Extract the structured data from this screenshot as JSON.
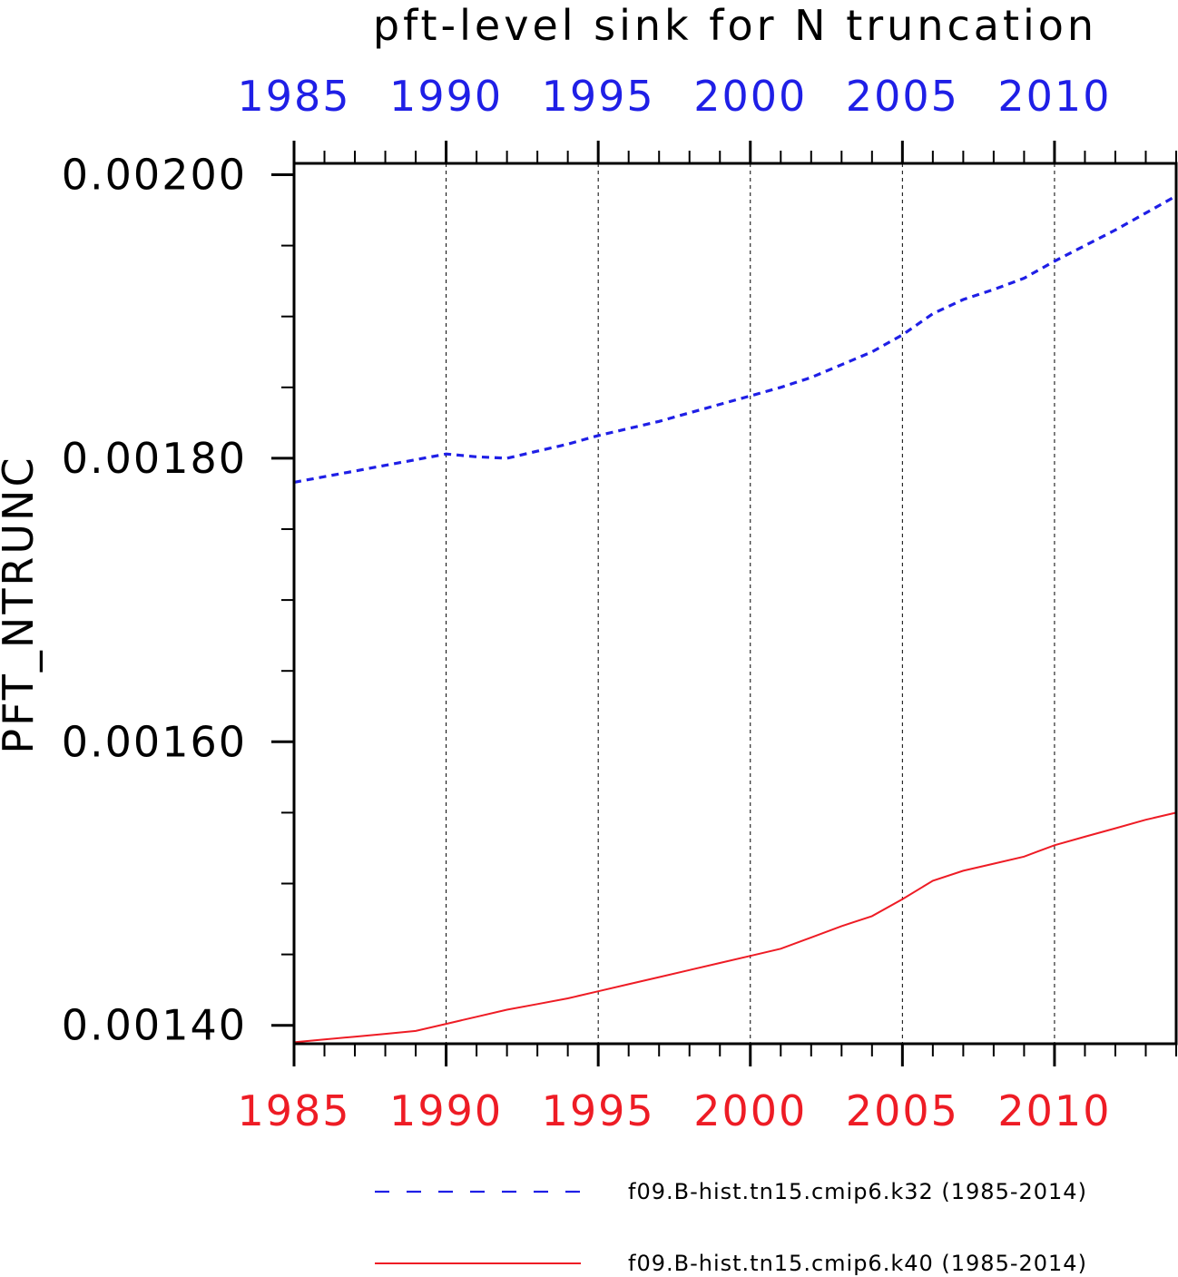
{
  "chart_data": {
    "type": "line",
    "title": "pft-level sink for N truncation",
    "ylabel": "PFT_NTRUNC",
    "xlim": [
      1985,
      2014
    ],
    "ylim": [
      0.001387,
      0.002008
    ],
    "x_ticks_labeled": [
      1985,
      1990,
      1995,
      2000,
      2005,
      2010
    ],
    "x_tick_labels": [
      "1985",
      "1990",
      "1995",
      "2000",
      "2005",
      "2010"
    ],
    "y_ticks_labeled": [
      0.0014,
      0.0016,
      0.0018,
      0.002
    ],
    "y_tick_labels": [
      "0.00140",
      "0.00160",
      "0.00180",
      "0.00200"
    ],
    "grid": "vertical dashed at labeled years",
    "top_axis_color": "#1f1fe6",
    "bottom_axis_color": "#ee1c25",
    "x": [
      1985,
      1986,
      1987,
      1988,
      1989,
      1990,
      1991,
      1992,
      1993,
      1994,
      1995,
      1996,
      1997,
      1998,
      1999,
      2000,
      2001,
      2002,
      2003,
      2004,
      2005,
      2006,
      2007,
      2008,
      2009,
      2010,
      2011,
      2012,
      2013,
      2014
    ],
    "series": [
      {
        "name": "f09.B-hist.tn15.cmip6.k32 (1985-2014)",
        "color": "#1f1fe6",
        "style": "dashed",
        "values": [
          0.001783,
          0.001787,
          0.001791,
          0.001795,
          0.001799,
          0.001803,
          0.001801,
          0.0018,
          0.001805,
          0.00181,
          0.001816,
          0.001821,
          0.001826,
          0.001832,
          0.001838,
          0.001844,
          0.00185,
          0.001857,
          0.001866,
          0.001875,
          0.001887,
          0.001902,
          0.001912,
          0.001919,
          0.001927,
          0.001939,
          0.00195,
          0.001961,
          0.001973,
          0.001985
        ]
      },
      {
        "name": "f09.B-hist.tn15.cmip6.k40 (1985-2014)",
        "color": "#ee1c25",
        "style": "solid",
        "values": [
          0.001388,
          0.00139,
          0.001392,
          0.001394,
          0.001396,
          0.001401,
          0.001406,
          0.001411,
          0.001415,
          0.001419,
          0.001424,
          0.001429,
          0.001434,
          0.001439,
          0.001444,
          0.001449,
          0.001454,
          0.001462,
          0.00147,
          0.001477,
          0.001489,
          0.001502,
          0.001509,
          0.001514,
          0.001519,
          0.001527,
          0.001533,
          0.001539,
          0.001545,
          0.00155
        ]
      }
    ],
    "legend": "bottom"
  }
}
